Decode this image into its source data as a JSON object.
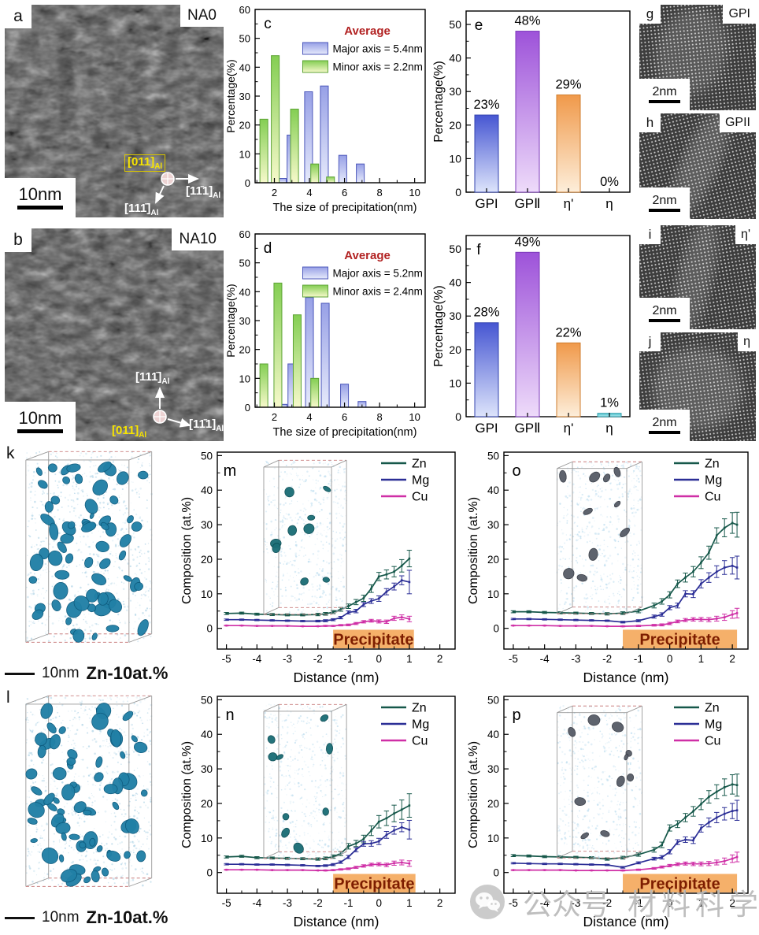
{
  "micrographs": [
    {
      "letter": "a",
      "tag": "NA0",
      "scalebar": "10nm",
      "sub": "Al",
      "zone": "[011]",
      "dir_right": "[11̄1]",
      "dir_down": "[111̄]"
    },
    {
      "letter": "b",
      "tag": "NA10",
      "scalebar": "10nm",
      "sub": "Al",
      "zone": "[011]",
      "dir_up": "[111̄]",
      "dir_right": "[11̄1]"
    }
  ],
  "lattice_panels": [
    {
      "letter": "g",
      "tag": "GPI",
      "scalebar": "2nm"
    },
    {
      "letter": "h",
      "tag": "GPII",
      "scalebar": "2nm"
    },
    {
      "letter": "i",
      "tag": "η'",
      "scalebar": "2nm"
    },
    {
      "letter": "j",
      "tag": "η",
      "scalebar": "2nm"
    }
  ],
  "apt_panels": [
    {
      "letter": "k",
      "scalebar": "10nm",
      "label": "Zn-10at.%"
    },
    {
      "letter": "l",
      "scalebar": "10nm",
      "label": "Zn-10at.%"
    }
  ],
  "watermark": {
    "text1": "公众号",
    "text2": "材料科学前瞻"
  },
  "chart_data": [
    {
      "panel": "c",
      "type": "histogram",
      "title": "Average",
      "title_color": "#b22222",
      "xlabel": "The size of precipitation(nm)",
      "ylabel": "Percentage(%)",
      "xlim": [
        0.9,
        10.6
      ],
      "ylim": [
        0,
        60
      ],
      "xticks": [
        2,
        4,
        6,
        8,
        10
      ],
      "yticks": [
        0,
        10,
        20,
        30,
        40,
        50,
        60
      ],
      "bar_width": 0.45,
      "series": [
        {
          "name": "Major axis",
          "legend": "Major axis = 5.4nm",
          "top": "#97a0e6",
          "bottom": "#e6eafb",
          "border": "#4d58bb",
          "x": [
            2.45,
            2.95,
            3.95,
            4.85,
            5.9,
            6.9
          ],
          "values": [
            1.5,
            16.5,
            31.5,
            33.5,
            9.5,
            6.5
          ]
        },
        {
          "name": "Minor axis",
          "legend": "Minor axis = 2.2nm",
          "top": "#84ce53",
          "bottom": "#f7f9cb",
          "border": "#5da335",
          "x": [
            1.4,
            2.05,
            3.15,
            4.3,
            5.2
          ],
          "values": [
            22,
            44,
            25.5,
            6.5,
            2
          ]
        }
      ]
    },
    {
      "panel": "d",
      "type": "histogram",
      "title": "Average",
      "title_color": "#b22222",
      "xlabel": "The size of precipitation(nm)",
      "ylabel": "Percentage(%)",
      "xlim": [
        0.9,
        10.6
      ],
      "ylim": [
        0,
        60
      ],
      "xticks": [
        2,
        4,
        6,
        8,
        10
      ],
      "yticks": [
        0,
        10,
        20,
        30,
        40,
        50,
        60
      ],
      "bar_width": 0.45,
      "series": [
        {
          "name": "Major axis",
          "legend": "Major axis = 5.2nm",
          "top": "#97a0e6",
          "bottom": "#e6eafb",
          "border": "#4d58bb",
          "x": [
            2.5,
            3.0,
            4.0,
            4.9,
            6.0,
            7.0
          ],
          "values": [
            1,
            15,
            38,
            36,
            8,
            2
          ]
        },
        {
          "name": "Minor axis",
          "legend": "Minor axis = 2.4nm",
          "top": "#84ce53",
          "bottom": "#f7f9cb",
          "border": "#5da335",
          "x": [
            1.4,
            2.2,
            3.3,
            4.3
          ],
          "values": [
            15,
            43,
            32,
            10
          ]
        }
      ]
    },
    {
      "panel": "e",
      "type": "bars",
      "ylabel": "Percentage(%)",
      "ylim": [
        0,
        54
      ],
      "yticks": [
        0,
        10,
        20,
        30,
        40,
        50
      ],
      "categories": [
        "GPI",
        "GPⅡ",
        "η'",
        "η"
      ],
      "values": [
        23,
        48,
        29,
        0
      ],
      "labels": [
        "23%",
        "48%",
        "29%",
        "0%"
      ],
      "bar_top": [
        "#4656d2",
        "#9d52d9",
        "#f0994a",
        "#4fc4cf"
      ],
      "bar_bottom": [
        "#dde4fb",
        "#eedbfa",
        "#fdeeda",
        "#b2e9ee"
      ],
      "bar_border": [
        "#3343af",
        "#7c3aba",
        "#cf7e2f",
        "#2f9dab"
      ]
    },
    {
      "panel": "f",
      "type": "bars",
      "ylabel": "Percentage(%)",
      "ylim": [
        0,
        54
      ],
      "yticks": [
        0,
        10,
        20,
        30,
        40,
        50
      ],
      "categories": [
        "GPI",
        "GPⅡ",
        "η'",
        "η"
      ],
      "values": [
        28,
        49,
        22,
        1
      ],
      "labels": [
        "28%",
        "49%",
        "22%",
        "1%"
      ],
      "bar_top": [
        "#4656d2",
        "#9d52d9",
        "#f0994a",
        "#4fc4cf"
      ],
      "bar_bottom": [
        "#dde4fb",
        "#eedbfa",
        "#fdeeda",
        "#b2e9ee"
      ],
      "bar_border": [
        "#3343af",
        "#7c3aba",
        "#cf7e2f",
        "#2f9dab"
      ]
    },
    {
      "panel": "m",
      "type": "profile",
      "xlabel": "Distance (nm)",
      "ylabel": "Composition (at.%)",
      "xlim": [
        -5.3,
        2.5
      ],
      "ylim": [
        -6,
        51
      ],
      "xticks": [
        -5,
        -4,
        -3,
        -2,
        -1,
        0,
        1,
        2
      ],
      "yticks": [
        0,
        10,
        20,
        30,
        40,
        50
      ],
      "precipitate": {
        "label": "Precipitate",
        "x0": -1.5,
        "x1": 1.15,
        "color": "#f5b06a",
        "text_color": "#7d1d00"
      },
      "x": [
        -5,
        -4.5,
        -4,
        -3.5,
        -3,
        -2.5,
        -2,
        -1.75,
        -1.5,
        -1.25,
        -1,
        -0.75,
        -0.5,
        -0.25,
        0,
        0.25,
        0.5,
        0.75,
        1
      ],
      "series": [
        {
          "name": "Zn",
          "color": "#16584a",
          "values": [
            4.3,
            4.4,
            4.1,
            4.0,
            3.9,
            3.9,
            4.0,
            4.2,
            4.7,
            5.5,
            6.4,
            7.6,
            8.7,
            11.5,
            15.0,
            15.6,
            16.4,
            18.1,
            20.2
          ],
          "err": [
            0.3,
            0.3,
            0.3,
            0.3,
            0.3,
            0.3,
            0.35,
            0.4,
            0.45,
            0.55,
            0.65,
            0.75,
            0.9,
            1.1,
            1.2,
            1.3,
            1.5,
            1.8,
            2.4
          ]
        },
        {
          "name": "Mg",
          "color": "#2b2e96",
          "values": [
            2.5,
            2.5,
            2.4,
            2.3,
            2.2,
            2.1,
            2.1,
            2.2,
            2.5,
            3.1,
            4.6,
            5.0,
            6.9,
            7.9,
            8.6,
            10.6,
            12.1,
            13.9,
            13.4
          ],
          "err": [
            0.2,
            0.2,
            0.2,
            0.2,
            0.2,
            0.2,
            0.25,
            0.3,
            0.3,
            0.35,
            0.45,
            0.5,
            0.6,
            0.7,
            0.8,
            0.9,
            1.0,
            1.3,
            3.4
          ]
        },
        {
          "name": "Cu",
          "color": "#cf2fa6",
          "values": [
            0.8,
            0.8,
            0.7,
            0.7,
            0.7,
            0.6,
            0.6,
            0.7,
            0.7,
            0.9,
            1.0,
            1.4,
            1.9,
            2.2,
            2.0,
            1.9,
            2.9,
            3.2,
            2.7
          ],
          "err": [
            0.1,
            0.1,
            0.1,
            0.1,
            0.1,
            0.1,
            0.1,
            0.15,
            0.15,
            0.2,
            0.25,
            0.3,
            0.35,
            0.4,
            0.45,
            0.5,
            0.6,
            0.7,
            0.8
          ]
        }
      ]
    },
    {
      "panel": "n",
      "type": "profile",
      "xlabel": "Distance (nm)",
      "ylabel": "Composition (at.%)",
      "xlim": [
        -5.3,
        2.5
      ],
      "ylim": [
        -6,
        51
      ],
      "xticks": [
        -5,
        -4,
        -3,
        -2,
        -1,
        0,
        1,
        2
      ],
      "yticks": [
        0,
        10,
        20,
        30,
        40,
        50
      ],
      "precipitate": {
        "label": "Precipitate",
        "x0": -1.5,
        "x1": 1.2,
        "color": "#f5b06a",
        "text_color": "#7d1d00"
      },
      "x": [
        -5,
        -4.5,
        -4,
        -3.5,
        -3,
        -2.5,
        -2,
        -1.75,
        -1.5,
        -1.25,
        -1,
        -0.75,
        -0.5,
        -0.25,
        0,
        0.25,
        0.5,
        0.75,
        1
      ],
      "series": [
        {
          "name": "Zn",
          "color": "#16584a",
          "values": [
            4.5,
            4.7,
            4.3,
            4.2,
            4.1,
            4.0,
            3.9,
            4.1,
            4.6,
            5.5,
            7.6,
            8.4,
            9.7,
            12.1,
            14.7,
            15.7,
            17.1,
            18.2,
            19.4
          ],
          "err": [
            0.3,
            0.3,
            0.3,
            0.3,
            0.3,
            0.3,
            0.35,
            0.4,
            0.5,
            0.6,
            0.8,
            0.9,
            1.1,
            1.4,
            1.8,
            2.1,
            2.4,
            2.8,
            3.4
          ]
        },
        {
          "name": "Mg",
          "color": "#2b2e96",
          "values": [
            2.4,
            2.4,
            2.3,
            2.3,
            2.2,
            2.1,
            1.9,
            2.0,
            2.3,
            3.0,
            4.5,
            6.6,
            8.3,
            8.4,
            9.0,
            10.9,
            12.2,
            13.1,
            12.4
          ],
          "err": [
            0.2,
            0.2,
            0.2,
            0.2,
            0.2,
            0.2,
            0.2,
            0.25,
            0.3,
            0.35,
            0.45,
            0.6,
            0.7,
            0.8,
            0.9,
            1.0,
            1.1,
            1.3,
            2.7
          ]
        },
        {
          "name": "Cu",
          "color": "#cf2fa6",
          "values": [
            0.8,
            0.8,
            0.8,
            0.7,
            0.7,
            0.7,
            0.6,
            0.6,
            0.7,
            0.9,
            1.1,
            1.5,
            1.9,
            2.3,
            2.4,
            2.2,
            2.7,
            2.9,
            2.6
          ],
          "err": [
            0.1,
            0.1,
            0.1,
            0.1,
            0.1,
            0.1,
            0.1,
            0.15,
            0.15,
            0.2,
            0.25,
            0.3,
            0.35,
            0.4,
            0.45,
            0.5,
            0.6,
            0.7,
            0.8
          ]
        }
      ]
    },
    {
      "panel": "o",
      "type": "profile",
      "xlabel": "Distance (nm)",
      "ylabel": "Composition (at.%)",
      "xlim": [
        -5.3,
        2.5
      ],
      "ylim": [
        -6,
        51
      ],
      "xticks": [
        -5,
        -4,
        -3,
        -2,
        -1,
        0,
        1,
        2
      ],
      "yticks": [
        0,
        10,
        20,
        30,
        40,
        50
      ],
      "precipitate": {
        "label": "Precipitate",
        "x0": -1.5,
        "x1": 2.15,
        "color": "#f5b06a",
        "text_color": "#7d1d00"
      },
      "x": [
        -5,
        -4.5,
        -4,
        -3.5,
        -3,
        -2.5,
        -2,
        -1.5,
        -1,
        -0.5,
        -0.25,
        0,
        0.25,
        0.5,
        0.75,
        1,
        1.25,
        1.5,
        1.75,
        2,
        2.15
      ],
      "series": [
        {
          "name": "Zn",
          "color": "#16584a",
          "values": [
            4.8,
            4.8,
            4.6,
            4.5,
            4.4,
            4.3,
            4.2,
            4.4,
            5.0,
            6.6,
            7.8,
            9.7,
            12.9,
            14.7,
            16.4,
            19.0,
            21.9,
            26.9,
            29.1,
            30.5,
            30.0
          ],
          "err": [
            0.3,
            0.3,
            0.3,
            0.3,
            0.3,
            0.3,
            0.35,
            0.4,
            0.5,
            0.7,
            0.8,
            0.9,
            1.1,
            1.3,
            1.5,
            1.7,
            1.9,
            2.2,
            2.6,
            3.0,
            3.6
          ]
        },
        {
          "name": "Mg",
          "color": "#2b2e96",
          "values": [
            2.7,
            2.7,
            2.6,
            2.5,
            2.4,
            2.3,
            2.2,
            1.8,
            2.2,
            3.4,
            4.0,
            6.0,
            6.6,
            10.0,
            9.9,
            12.9,
            14.7,
            16.4,
            17.6,
            18.1,
            17.6
          ],
          "err": [
            0.2,
            0.2,
            0.2,
            0.2,
            0.2,
            0.2,
            0.2,
            0.25,
            0.3,
            0.45,
            0.5,
            0.6,
            0.7,
            0.9,
            1.0,
            1.2,
            1.4,
            1.7,
            2.0,
            2.4,
            3.3
          ]
        },
        {
          "name": "Cu",
          "color": "#cf2fa6",
          "values": [
            0.8,
            0.8,
            0.8,
            0.7,
            0.7,
            0.7,
            0.6,
            0.6,
            0.7,
            0.9,
            1.0,
            1.4,
            2.0,
            2.4,
            2.6,
            2.6,
            2.5,
            2.8,
            3.2,
            4.0,
            4.4
          ],
          "err": [
            0.1,
            0.1,
            0.1,
            0.1,
            0.1,
            0.1,
            0.1,
            0.15,
            0.2,
            0.25,
            0.3,
            0.35,
            0.4,
            0.45,
            0.5,
            0.55,
            0.6,
            0.7,
            0.9,
            1.1,
            1.4
          ]
        }
      ]
    },
    {
      "panel": "p",
      "type": "profile",
      "xlabel": "Distance (nm)",
      "ylabel": "Composition (at.%)",
      "xlim": [
        -5.3,
        2.5
      ],
      "ylim": [
        -6,
        51
      ],
      "xticks": [
        -5,
        -4,
        -3,
        -2,
        -1,
        0,
        1,
        2
      ],
      "yticks": [
        0,
        10,
        20,
        30,
        40,
        50
      ],
      "precipitate": {
        "label": "Precipitate",
        "x0": -1.5,
        "x1": 2.15,
        "color": "#f5b06a",
        "text_color": "#7d1d00"
      },
      "x": [
        -5,
        -4.5,
        -4,
        -3.5,
        -3,
        -2.5,
        -2,
        -1.5,
        -1,
        -0.5,
        -0.25,
        0,
        0.25,
        0.5,
        0.75,
        1,
        1.25,
        1.5,
        1.75,
        2,
        2.15
      ],
      "series": [
        {
          "name": "Zn",
          "color": "#16584a",
          "values": [
            4.9,
            4.8,
            4.6,
            4.5,
            4.4,
            4.3,
            3.9,
            4.3,
            5.2,
            6.6,
            8.0,
            12.9,
            14.0,
            15.9,
            17.7,
            19.8,
            21.9,
            23.4,
            24.7,
            25.5,
            25.3
          ],
          "err": [
            0.3,
            0.3,
            0.3,
            0.3,
            0.3,
            0.3,
            0.35,
            0.4,
            0.5,
            0.7,
            0.8,
            0.9,
            1.0,
            1.2,
            1.4,
            1.6,
            1.8,
            2.0,
            2.4,
            2.8,
            3.2
          ]
        },
        {
          "name": "Mg",
          "color": "#2b2e96",
          "values": [
            2.7,
            2.6,
            2.5,
            2.5,
            2.4,
            2.3,
            2.2,
            1.5,
            2.8,
            4.0,
            4.4,
            6.0,
            8.8,
            9.5,
            9.3,
            12.8,
            14.5,
            15.9,
            17.0,
            17.8,
            18.0
          ],
          "err": [
            0.2,
            0.2,
            0.2,
            0.2,
            0.2,
            0.2,
            0.2,
            0.25,
            0.3,
            0.4,
            0.5,
            0.6,
            0.7,
            0.8,
            0.9,
            1.1,
            1.3,
            1.5,
            1.8,
            2.2,
            2.9
          ]
        },
        {
          "name": "Cu",
          "color": "#cf2fa6",
          "values": [
            0.7,
            0.7,
            0.7,
            0.7,
            0.6,
            0.6,
            0.6,
            0.6,
            0.8,
            1.2,
            1.6,
            2.0,
            2.4,
            2.6,
            2.5,
            2.5,
            2.6,
            2.9,
            3.3,
            4.0,
            4.5
          ],
          "err": [
            0.1,
            0.1,
            0.1,
            0.1,
            0.1,
            0.1,
            0.1,
            0.15,
            0.2,
            0.25,
            0.3,
            0.35,
            0.4,
            0.45,
            0.5,
            0.55,
            0.6,
            0.7,
            0.9,
            1.1,
            1.4
          ]
        }
      ]
    }
  ]
}
